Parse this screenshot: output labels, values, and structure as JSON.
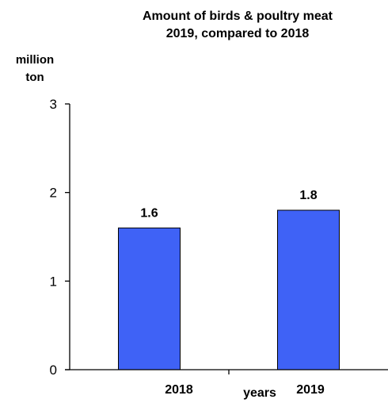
{
  "chart_data": {
    "type": "bar",
    "title_line1": "Amount of  birds & poultry  meat",
    "title_line2": "2019, compared to 2018",
    "ylabel_line1": "million",
    "ylabel_line2": "ton",
    "xlabel": "years",
    "categories": [
      "2018",
      "2019"
    ],
    "values": [
      1.6,
      1.8
    ],
    "data_labels": [
      "1.6",
      "1.8"
    ],
    "ylim": [
      0,
      3
    ],
    "yticks": [
      "0",
      "1",
      "2",
      "3"
    ],
    "bar_color": "#3f62f6",
    "grid": false,
    "legend": "none"
  }
}
